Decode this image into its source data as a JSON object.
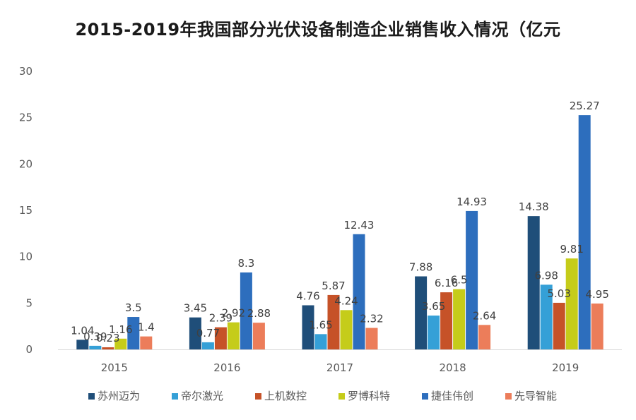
{
  "chart_data": {
    "type": "bar",
    "title": "2015-2019年我国部分光伏设备制造企业销售收入情况（亿元",
    "xlabel": "",
    "ylabel": "",
    "categories": [
      "2015",
      "2016",
      "2017",
      "2018",
      "2019"
    ],
    "ylim": [
      0,
      30
    ],
    "yticks": [
      "0",
      "5",
      "10",
      "15",
      "20",
      "25",
      "30"
    ],
    "grid": false,
    "legend_position": "bottom",
    "series": [
      {
        "name": "苏州迈为",
        "color": "#1f4e79",
        "values": [
          1.04,
          3.45,
          4.76,
          7.88,
          14.38
        ],
        "labels": [
          "1.04",
          "3.45",
          "4.76",
          "7.88",
          "14.38"
        ]
      },
      {
        "name": "帝尔激光",
        "color": "#35a0d7",
        "values": [
          0.39,
          0.77,
          1.65,
          3.65,
          6.98
        ],
        "labels": [
          "0.39",
          "0.77",
          "1.65",
          "3.65",
          "6.98"
        ]
      },
      {
        "name": "上机数控",
        "color": "#c65228",
        "values": [
          0.23,
          2.39,
          5.87,
          6.16,
          5.03
        ],
        "labels": [
          "0.23",
          "2.39",
          "5.87",
          "6.16",
          "5.03"
        ]
      },
      {
        "name": "罗博科特",
        "color": "#c5cc1a",
        "values": [
          1.16,
          2.92,
          4.24,
          6.5,
          9.81
        ],
        "labels": [
          "1.16",
          "2.92",
          "4.24",
          "6.5",
          "9.81"
        ]
      },
      {
        "name": "捷佳伟创",
        "color": "#2d6ebd",
        "values": [
          3.5,
          8.3,
          12.43,
          14.93,
          25.27
        ],
        "labels": [
          "3.5",
          "8.3",
          "12.43",
          "14.93",
          "25.27"
        ]
      },
      {
        "name": "先导智能",
        "color": "#ec7d5a",
        "values": [
          1.4,
          2.88,
          2.32,
          2.64,
          4.95
        ],
        "labels": [
          "1.4",
          "2.88",
          "2.32",
          "2.64",
          "4.95"
        ]
      }
    ]
  }
}
